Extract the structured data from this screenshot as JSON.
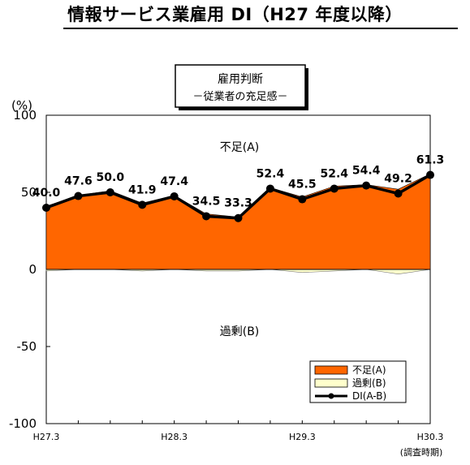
{
  "page_title": "情報サービス業雇用 DI（H27 年度以降）",
  "colors": {
    "shortage": "#ff6600",
    "surplus": "#ffffcc",
    "di_line": "#000000",
    "plot_bg": "#ffffff"
  },
  "chart_data": {
    "type": "area",
    "title": "雇用判断",
    "subtitle": "－従業者の充足感－",
    "ylabel": "(%)",
    "xlabel": "(調査時期)",
    "ylim": [
      -100,
      100
    ],
    "yticks": [
      100,
      50,
      0,
      -50,
      -100
    ],
    "x_ticks": [
      "H27.3",
      "H28.3",
      "H29.3",
      "H30.3"
    ],
    "x_tick_index": [
      0,
      4,
      8,
      12
    ],
    "periods": 13,
    "series": [
      {
        "name": "不足(A)",
        "values": [
          41,
          48,
          51,
          43,
          48,
          36,
          34,
          53,
          47,
          54,
          55,
          52,
          62
        ]
      },
      {
        "name": "過剰(B)",
        "values": [
          -1,
          0,
          0,
          -1,
          0,
          -1,
          -1,
          0,
          -2,
          -1,
          0,
          -3,
          0
        ]
      },
      {
        "name": "DI(A-B)",
        "values": [
          40.0,
          47.6,
          50.0,
          41.9,
          47.4,
          34.5,
          33.3,
          52.4,
          45.5,
          52.4,
          54.4,
          49.2,
          61.3
        ]
      }
    ],
    "data_labels": [
      "40.0",
      "47.6",
      "50.0",
      "41.9",
      "47.4",
      "34.5",
      "33.3",
      "52.4",
      "45.5",
      "52.4",
      "54.4",
      "49.2",
      "61.3"
    ],
    "annotations": {
      "shortage_area": "不足(A)",
      "surplus_area": "過剰(B)"
    },
    "legend_position": "bottom-right",
    "grid": false
  }
}
